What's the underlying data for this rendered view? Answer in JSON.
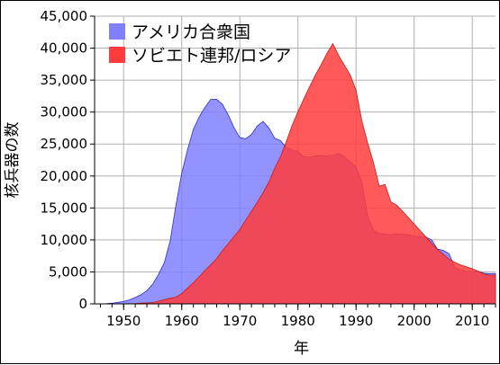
{
  "chart_data": {
    "type": "area",
    "title": "",
    "xlabel": "年",
    "ylabel": "核兵器の数",
    "xlim": [
      1945,
      2014
    ],
    "ylim": [
      0,
      45000
    ],
    "x_ticks": [
      1950,
      1960,
      1970,
      1980,
      1990,
      2000,
      2010
    ],
    "x_tick_labels": [
      "1950",
      "1960",
      "1970",
      "1980",
      "1990",
      "2000",
      "2010"
    ],
    "y_ticks": [
      0,
      5000,
      10000,
      15000,
      20000,
      25000,
      30000,
      35000,
      40000,
      45000
    ],
    "y_tick_labels": [
      "0",
      "5,000",
      "10,000",
      "15,000",
      "20,000",
      "25,000",
      "30,000",
      "35,000",
      "40,000",
      "45,000"
    ],
    "grid": true,
    "legend_position": "top-left",
    "series": [
      {
        "name": "アメリカ合衆国",
        "color": "#8080ff",
        "stroke": "#3030c0",
        "x": [
          1945,
          1946,
          1947,
          1948,
          1949,
          1950,
          1951,
          1952,
          1953,
          1954,
          1955,
          1956,
          1957,
          1958,
          1959,
          1960,
          1961,
          1962,
          1963,
          1964,
          1965,
          1966,
          1967,
          1968,
          1969,
          1970,
          1971,
          1972,
          1973,
          1974,
          1975,
          1976,
          1977,
          1978,
          1979,
          1980,
          1981,
          1982,
          1983,
          1984,
          1985,
          1986,
          1987,
          1988,
          1989,
          1990,
          1991,
          1992,
          1993,
          1994,
          1995,
          1996,
          1997,
          1998,
          1999,
          2000,
          2001,
          2002,
          2003,
          2004,
          2005,
          2006,
          2007,
          2008,
          2009,
          2010,
          2011,
          2012,
          2013,
          2014
        ],
        "values": [
          6,
          11,
          32,
          110,
          235,
          369,
          640,
          1005,
          1436,
          2063,
          3057,
          4618,
          6444,
          9822,
          15468,
          20434,
          24111,
          27297,
          29249,
          30751,
          31982,
          31982,
          31233,
          29561,
          27552,
          26008,
          25830,
          26516,
          27835,
          28537,
          27519,
          25914,
          25542,
          24418,
          24107,
          23764,
          23031,
          22937,
          23154,
          23228,
          23135,
          23254,
          23490,
          23077,
          22174,
          21392,
          19008,
          13708,
          11511,
          10979,
          10904,
          10829,
          10950,
          10871,
          10824,
          10577,
          10526,
          10457,
          10027,
          8570,
          8360,
          7853,
          5709,
          5273,
          5113,
          5066,
          5113,
          4804,
          4717,
          4760
        ]
      },
      {
        "name": "ソビエト連邦/ロシア",
        "color": "#ff3c3c",
        "stroke": "#c02020",
        "x": [
          1945,
          1946,
          1947,
          1948,
          1949,
          1950,
          1951,
          1952,
          1953,
          1954,
          1955,
          1956,
          1957,
          1958,
          1959,
          1960,
          1961,
          1962,
          1963,
          1964,
          1965,
          1966,
          1967,
          1968,
          1969,
          1970,
          1971,
          1972,
          1973,
          1974,
          1975,
          1976,
          1977,
          1978,
          1979,
          1980,
          1981,
          1982,
          1983,
          1984,
          1985,
          1986,
          1987,
          1988,
          1989,
          1990,
          1991,
          1992,
          1993,
          1994,
          1995,
          1996,
          1997,
          1998,
          1999,
          2000,
          2001,
          2002,
          2003,
          2004,
          2005,
          2006,
          2007,
          2008,
          2009,
          2010,
          2011,
          2012,
          2013,
          2014
        ],
        "values": [
          0,
          0,
          0,
          0,
          1,
          5,
          25,
          50,
          120,
          150,
          200,
          426,
          660,
          869,
          1060,
          1605,
          2471,
          3322,
          4238,
          5221,
          6129,
          7089,
          8339,
          9399,
          10538,
          11643,
          13092,
          14478,
          15915,
          17385,
          19055,
          21205,
          23044,
          25393,
          27935,
          30062,
          32049,
          33952,
          35804,
          37431,
          39197,
          40723,
          38859,
          37333,
          35805,
          33417,
          28595,
          25155,
          22101,
          18399,
          18679,
          15940,
          15440,
          14500,
          13500,
          12500,
          11500,
          10500,
          9500,
          8500,
          7800,
          7000,
          6500,
          6100,
          5800,
          5500,
          5100,
          4700,
          4500,
          4500
        ]
      }
    ]
  }
}
